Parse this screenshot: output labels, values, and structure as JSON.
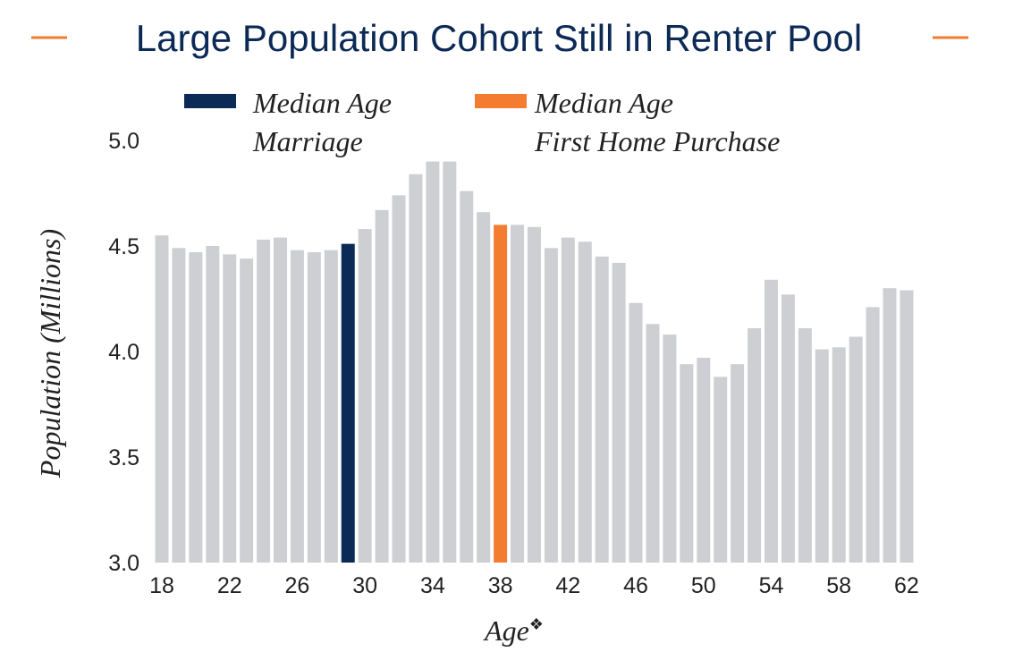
{
  "colors": {
    "title": "#0c2a56",
    "accent_line": "#f47c30",
    "bar_default": "#cdcfd2",
    "bar_marriage": "#0c2a56",
    "bar_home": "#f47c30"
  },
  "legend": {
    "marriage_line1": "Median Age",
    "marriage_line2": "Marriage",
    "home_line1": "Median Age",
    "home_line2": "First Home Purchase"
  },
  "chart_data": {
    "type": "bar",
    "title": "Large Population Cohort Still in Renter Pool",
    "xlabel": "Age",
    "xlabel_marker": "❖",
    "ylabel": "Population (Millions)",
    "ylim": [
      3.0,
      5.0
    ],
    "yticks": [
      "3.0",
      "3.5",
      "4.0",
      "4.5",
      "5.0"
    ],
    "xtick_labels": [
      "18",
      "22",
      "26",
      "30",
      "34",
      "38",
      "42",
      "46",
      "50",
      "54",
      "58",
      "62"
    ],
    "categories": [
      18,
      19,
      20,
      21,
      22,
      23,
      24,
      25,
      26,
      27,
      28,
      29,
      30,
      31,
      32,
      33,
      34,
      35,
      36,
      37,
      38,
      39,
      40,
      41,
      42,
      43,
      44,
      45,
      46,
      47,
      48,
      49,
      50,
      51,
      52,
      53,
      54,
      55,
      56,
      57,
      58,
      59,
      60,
      61,
      62
    ],
    "values": [
      4.55,
      4.49,
      4.47,
      4.5,
      4.46,
      4.44,
      4.53,
      4.54,
      4.48,
      4.47,
      4.48,
      4.51,
      4.58,
      4.67,
      4.74,
      4.84,
      4.9,
      4.9,
      4.76,
      4.66,
      4.6,
      4.6,
      4.59,
      4.49,
      4.54,
      4.52,
      4.45,
      4.42,
      4.23,
      4.13,
      4.08,
      3.94,
      3.97,
      3.88,
      3.94,
      4.11,
      4.34,
      4.27,
      4.11,
      4.01,
      4.02,
      4.07,
      4.21,
      4.3,
      4.29
    ],
    "highlights": {
      "29": "marriage",
      "38": "home"
    }
  }
}
